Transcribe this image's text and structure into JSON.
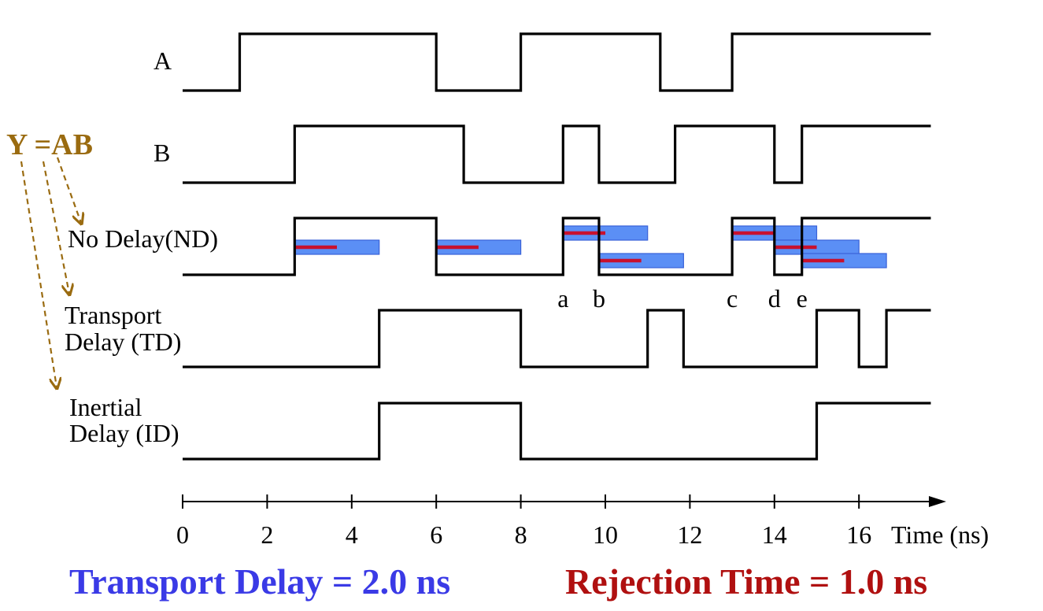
{
  "equation": "Y =AB",
  "signals": [
    {
      "label_lines": [
        "A"
      ],
      "transitions": [
        [
          0,
          0
        ],
        [
          1.35,
          1
        ],
        [
          6,
          0
        ],
        [
          8,
          1
        ],
        [
          11.3,
          0
        ],
        [
          13,
          1
        ],
        [
          17.7,
          1
        ]
      ]
    },
    {
      "label_lines": [
        "B"
      ],
      "transitions": [
        [
          0,
          0
        ],
        [
          2.65,
          1
        ],
        [
          6.65,
          0
        ],
        [
          9,
          1
        ],
        [
          9.85,
          0
        ],
        [
          11.65,
          1
        ],
        [
          14,
          0
        ],
        [
          14.65,
          1
        ],
        [
          17.7,
          1
        ]
      ]
    },
    {
      "label_lines": [
        "No Delay(ND)"
      ],
      "transitions": [
        [
          0,
          0
        ],
        [
          2.65,
          1
        ],
        [
          6,
          0
        ],
        [
          9,
          1
        ],
        [
          9.85,
          0
        ],
        [
          13,
          1
        ],
        [
          14,
          0
        ],
        [
          14.65,
          1
        ],
        [
          17.7,
          1
        ]
      ]
    },
    {
      "label_lines": [
        "Transport",
        "Delay (TD)"
      ],
      "transitions": [
        [
          0,
          0
        ],
        [
          4.65,
          1
        ],
        [
          8,
          0
        ],
        [
          11,
          1
        ],
        [
          11.85,
          0
        ],
        [
          15,
          1
        ],
        [
          16,
          0
        ],
        [
          16.65,
          1
        ],
        [
          17.7,
          1
        ]
      ]
    },
    {
      "label_lines": [
        "Inertial",
        "Delay (ID)"
      ],
      "transitions": [
        [
          0,
          0
        ],
        [
          4.65,
          1
        ],
        [
          8,
          0
        ],
        [
          15,
          1
        ],
        [
          17.7,
          1
        ]
      ]
    }
  ],
  "delay_bars": [
    {
      "start": 2.65,
      "row": 0
    },
    {
      "start": 6.0,
      "row": 0
    },
    {
      "start": 9.0,
      "row": -1
    },
    {
      "start": 9.85,
      "row": 1
    },
    {
      "start": 13.0,
      "row": -1
    },
    {
      "start": 14.0,
      "row": 0
    },
    {
      "start": 14.65,
      "row": 1
    }
  ],
  "event_labels": [
    {
      "text": "a",
      "t": 9.0
    },
    {
      "text": "b",
      "t": 9.85
    },
    {
      "text": "c",
      "t": 13.0
    },
    {
      "text": "d",
      "t": 14.0
    },
    {
      "text": "e",
      "t": 14.65
    }
  ],
  "axis": {
    "ticks": [
      "0",
      "2",
      "4",
      "6",
      "8",
      "10",
      "12",
      "14",
      "16"
    ],
    "tick_values": [
      0,
      2,
      4,
      6,
      8,
      10,
      12,
      14,
      16
    ],
    "label": "Time (ns)",
    "range": [
      0,
      18
    ]
  },
  "transport_delay_value": 2.0,
  "rejection_time_value": 1.0,
  "footer": {
    "transport": "Transport Delay = 2.0 ns",
    "rejection": "Rejection Time = 1.0 ns"
  },
  "colors": {
    "equation": "#9a6b10",
    "transport": "#3a3ae6",
    "rejection": "#b01010",
    "bar_fill": "#5b8ff5",
    "bar_stroke": "#3a62d8",
    "bar_line": "#c8102e",
    "wave": "#000000"
  }
}
